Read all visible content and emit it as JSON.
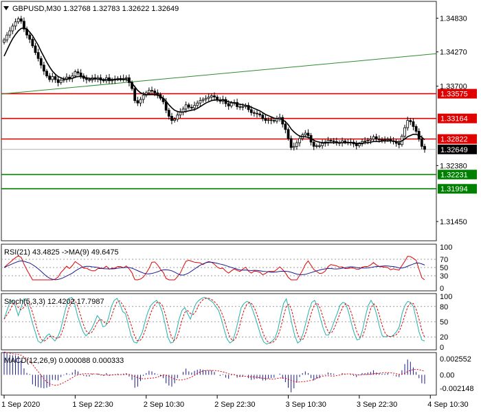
{
  "symbol_header": {
    "menu_icon": "triangle-down-icon",
    "text": "GBPUSD,M30  1.32768 1.32783 1.32622 1.32649"
  },
  "chart_data": {
    "type": "candlestick",
    "main": {
      "ylim": [
        1.3113,
        1.3511
      ],
      "price_ticks": [
        "1.34830",
        "1.34270",
        "1.33700",
        "1.32380",
        "1.31450"
      ],
      "price_tick_values": [
        1.3483,
        1.3427,
        1.337,
        1.3238,
        1.3145
      ],
      "x_ticks": [
        "1 Sep 2020",
        "1 Sep 22:30",
        "2 Sep 10:30",
        "2 Sep 22:30",
        "3 Sep 10:30",
        "3 Sep 22:30",
        "4 Sep 10:30"
      ],
      "x_tick_index": [
        0,
        25,
        50,
        75,
        100,
        125,
        150
      ],
      "last_price": "1.32649",
      "current_price_line": 1.32649,
      "horizontal_levels": [
        {
          "label": "1.33575",
          "value": 1.33575,
          "color": "#e00000"
        },
        {
          "label": "1.33164",
          "value": 1.33164,
          "color": "#e00000"
        },
        {
          "label": "1.32822",
          "value": 1.32822,
          "color": "#e00000"
        },
        {
          "label": "1.32231",
          "value": 1.32231,
          "color": "#008000"
        },
        {
          "label": "1.31994",
          "value": 1.31994,
          "color": "#008000"
        }
      ],
      "trend_line": {
        "from": [
          0,
          1.3357
        ],
        "to": [
          165,
          1.3424
        ],
        "color": "#2e8b2e"
      },
      "close_series": [
        1.3447,
        1.3455,
        1.3462,
        1.347,
        1.3477,
        1.3482,
        1.3478,
        1.3465,
        1.3455,
        1.3448,
        1.3437,
        1.3426,
        1.3416,
        1.3405,
        1.3395,
        1.3387,
        1.3381,
        1.3386,
        1.3381,
        1.3376,
        1.338,
        1.3381,
        1.3385,
        1.3383,
        1.3387,
        1.3394,
        1.3392,
        1.3387,
        1.3383,
        1.3381,
        1.338,
        1.3384,
        1.3382,
        1.3384,
        1.338,
        1.3379,
        1.3384,
        1.3379,
        1.338,
        1.3382,
        1.3383,
        1.3382,
        1.3383,
        1.3384,
        1.3376,
        1.3366,
        1.3346,
        1.3342,
        1.3348,
        1.3355,
        1.3359,
        1.3363,
        1.3362,
        1.3359,
        1.3356,
        1.335,
        1.3344,
        1.333,
        1.332,
        1.3313,
        1.3315,
        1.3322,
        1.3327,
        1.3332,
        1.3339,
        1.3335,
        1.3334,
        1.3338,
        1.3342,
        1.3346,
        1.3348,
        1.335,
        1.3352,
        1.3354,
        1.3352,
        1.3347,
        1.3345,
        1.3348,
        1.3341,
        1.3337,
        1.3342,
        1.3343,
        1.3336,
        1.3336,
        1.3336,
        1.3338,
        1.3331,
        1.3326,
        1.3325,
        1.3324,
        1.3322,
        1.3316,
        1.3313,
        1.3314,
        1.3313,
        1.3312,
        1.3316,
        1.3318,
        1.3307,
        1.3298,
        1.3283,
        1.3268,
        1.327,
        1.3276,
        1.3283,
        1.3289,
        1.3292,
        1.3288,
        1.3277,
        1.327,
        1.3271,
        1.3271,
        1.3275,
        1.3277,
        1.328,
        1.3279,
        1.3278,
        1.3276,
        1.3276,
        1.3279,
        1.3277,
        1.3276,
        1.3277,
        1.3274,
        1.3271,
        1.3274,
        1.3278,
        1.3279,
        1.328,
        1.3282,
        1.3286,
        1.3282,
        1.3281,
        1.3281,
        1.3281,
        1.3282,
        1.3279,
        1.3278,
        1.3275,
        1.3273,
        1.3287,
        1.3301,
        1.3313,
        1.3311,
        1.3303,
        1.3295,
        1.3282,
        1.327,
        1.3265
      ],
      "ma_series": [
        1.342,
        1.343,
        1.344,
        1.3449,
        1.3456,
        1.3462,
        1.3466,
        1.3467,
        1.3465,
        1.346,
        1.3454,
        1.3446,
        1.3438,
        1.3428,
        1.3419,
        1.341,
        1.3402,
        1.3395,
        1.339,
        1.3386,
        1.3384,
        1.3382,
        1.3382,
        1.3382,
        1.3383,
        1.3385,
        1.3386,
        1.3386,
        1.3385,
        1.3384,
        1.3383,
        1.3382,
        1.3382,
        1.3382,
        1.3381,
        1.3381,
        1.3381,
        1.3381,
        1.3381,
        1.3381,
        1.3381,
        1.3381,
        1.3381,
        1.3381,
        1.3379,
        1.3375,
        1.3369,
        1.3363,
        1.3359,
        1.3357,
        1.3356,
        1.3356,
        1.3356,
        1.3356,
        1.3355,
        1.3353,
        1.335,
        1.3345,
        1.3339,
        1.3334,
        1.333,
        1.3328,
        1.3327,
        1.3327,
        1.3328,
        1.3329,
        1.333,
        1.3331,
        1.3333,
        1.3336,
        1.3339,
        1.3342,
        1.3344,
        1.3346,
        1.3347,
        1.3347,
        1.3347,
        1.3347,
        1.3346,
        1.3344,
        1.3343,
        1.3342,
        1.3341,
        1.334,
        1.3339,
        1.3338,
        1.3337,
        1.3335,
        1.3333,
        1.3331,
        1.3329,
        1.3326,
        1.3323,
        1.3321,
        1.3319,
        1.3317,
        1.3316,
        1.3316,
        1.3314,
        1.3311,
        1.3306,
        1.3299,
        1.3294,
        1.329,
        1.3287,
        1.3286,
        1.3286,
        1.3285,
        1.3283,
        1.328,
        1.3278,
        1.3277,
        1.3276,
        1.3276,
        1.3276,
        1.3276,
        1.3276,
        1.3276,
        1.3276,
        1.3276,
        1.3276,
        1.3276,
        1.3276,
        1.3276,
        1.3275,
        1.3275,
        1.3275,
        1.3276,
        1.3276,
        1.3277,
        1.3278,
        1.3278,
        1.3278,
        1.3279,
        1.3279,
        1.3279,
        1.3279,
        1.3279,
        1.3278,
        1.3277,
        1.3279,
        1.3282,
        1.3286,
        1.3288,
        1.329,
        1.329,
        1.3288,
        1.3285,
        1.3281
      ]
    },
    "rsi": {
      "label": "RSI(21) 43.4825  ->MA(9) 49.6475",
      "ylim": [
        0,
        100
      ],
      "ticks": [
        "100",
        "70",
        "50",
        "30",
        "0"
      ],
      "tick_values": [
        100,
        70,
        50,
        30,
        0
      ],
      "dotted_levels": [
        70,
        50,
        30
      ],
      "rsi_color": "#e00000",
      "ma_color": "#1a1a8c"
    },
    "stoch": {
      "label": "Stoch(5,3,3) 12.4202 17.7987",
      "ylim": [
        0,
        100
      ],
      "ticks": [
        "100",
        "80",
        "50",
        "20",
        "0"
      ],
      "tick_values": [
        100,
        80,
        50,
        20,
        0
      ],
      "dotted_levels": [
        80,
        50,
        20
      ],
      "main_color": "#20b2aa",
      "signal_color": "#e00000",
      "main_series": [
        55,
        72,
        88,
        92,
        80,
        62,
        78,
        95,
        90,
        70,
        48,
        30,
        12,
        8,
        14,
        22,
        26,
        18,
        12,
        20,
        34,
        58,
        80,
        96,
        98,
        85,
        62,
        45,
        30,
        22,
        28,
        36,
        48,
        62,
        55,
        40,
        42,
        58,
        80,
        92,
        96,
        85,
        70,
        66,
        44,
        22,
        10,
        8,
        18,
        30,
        52,
        70,
        82,
        88,
        92,
        85,
        70,
        46,
        20,
        8,
        10,
        30,
        55,
        72,
        78,
        66,
        55,
        72,
        86,
        92,
        96,
        98,
        96,
        92,
        88,
        80,
        72,
        55,
        34,
        16,
        8,
        12,
        30,
        54,
        78,
        86,
        90,
        88,
        74,
        58,
        40,
        22,
        10,
        6,
        8,
        12,
        18,
        34,
        62,
        86,
        95,
        72,
        45,
        22,
        8,
        12,
        28,
        50,
        72,
        88,
        92,
        80,
        58,
        38,
        24,
        24,
        36,
        52,
        66,
        82,
        88,
        86,
        70,
        48,
        28,
        14,
        16,
        34,
        60,
        82,
        92,
        82,
        64,
        40,
        22,
        20,
        22,
        20,
        24,
        30,
        40,
        66,
        82,
        90,
        88,
        80,
        55,
        30,
        14,
        12
      ]
    },
    "macd": {
      "label": "MACD(12,26,9) 0.000088 0.000333",
      "ylim": [
        -0.0028,
        0.0031
      ],
      "ticks": [
        "0.002552",
        "0.00",
        "-0.002148"
      ],
      "tick_values": [
        0.002552,
        0.0,
        -0.002148
      ],
      "hist_color": "#1a1a8c",
      "signal_color": "#e00000",
      "signal_style": "dotted"
    }
  }
}
